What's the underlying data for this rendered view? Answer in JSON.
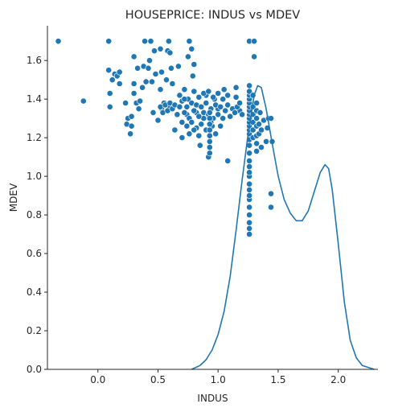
{
  "chart_data": {
    "type": "scatter",
    "title": "HOUSEPRICE: INDUS vs MDEV",
    "xlabel": "INDUS",
    "ylabel": "MDEV",
    "xlim": [
      -0.42,
      2.33
    ],
    "ylim": [
      0.0,
      1.78
    ],
    "xticks": [
      0.0,
      0.5,
      1.0,
      1.5,
      2.0
    ],
    "xtick_labels": [
      "0.0",
      "0.5",
      "1.0",
      "1.5",
      "2.0"
    ],
    "yticks": [
      0.0,
      0.2,
      0.4,
      0.6,
      0.8,
      1.0,
      1.2,
      1.4,
      1.6
    ],
    "ytick_labels": [
      "0.0",
      "0.2",
      "0.4",
      "0.6",
      "0.8",
      "1.0",
      "1.2",
      "1.4",
      "1.6"
    ],
    "grid": false,
    "point_color": "#1f77b4",
    "line_color": "#1f77b4",
    "series": [
      {
        "kind": "scatter",
        "points": [
          [
            -0.33,
            1.7
          ],
          [
            -0.12,
            1.39
          ],
          [
            0.09,
            1.7
          ],
          [
            0.09,
            1.55
          ],
          [
            0.1,
            1.43
          ],
          [
            0.1,
            1.36
          ],
          [
            0.12,
            1.5
          ],
          [
            0.14,
            1.53
          ],
          [
            0.16,
            1.52
          ],
          [
            0.18,
            1.54
          ],
          [
            0.18,
            1.48
          ],
          [
            0.23,
            1.38
          ],
          [
            0.24,
            1.27
          ],
          [
            0.25,
            1.3
          ],
          [
            0.27,
            1.22
          ],
          [
            0.28,
            1.26
          ],
          [
            0.28,
            1.31
          ],
          [
            0.3,
            1.43
          ],
          [
            0.3,
            1.48
          ],
          [
            0.3,
            1.62
          ],
          [
            0.32,
            1.38
          ],
          [
            0.33,
            1.56
          ],
          [
            0.34,
            1.35
          ],
          [
            0.35,
            1.39
          ],
          [
            0.37,
            1.46
          ],
          [
            0.38,
            1.57
          ],
          [
            0.39,
            1.7
          ],
          [
            0.4,
            1.49
          ],
          [
            0.42,
            1.56
          ],
          [
            0.43,
            1.6
          ],
          [
            0.44,
            1.7
          ],
          [
            0.45,
            1.49
          ],
          [
            0.46,
            1.33
          ],
          [
            0.47,
            1.65
          ],
          [
            0.48,
            1.53
          ],
          [
            0.5,
            1.29
          ],
          [
            0.52,
            1.66
          ],
          [
            0.52,
            1.45
          ],
          [
            0.53,
            1.54
          ],
          [
            0.53,
            1.35
          ],
          [
            0.55,
            1.38
          ],
          [
            0.57,
            1.5
          ],
          [
            0.58,
            1.65
          ],
          [
            0.59,
            1.7
          ],
          [
            0.6,
            1.36
          ],
          [
            0.6,
            1.64
          ],
          [
            0.61,
            1.56
          ],
          [
            0.62,
            1.48
          ],
          [
            0.64,
            1.24
          ],
          [
            0.67,
            1.57
          ],
          [
            0.7,
            1.2
          ],
          [
            0.72,
            1.45
          ],
          [
            0.74,
            1.32
          ],
          [
            0.75,
            1.4
          ],
          [
            0.75,
            1.62
          ],
          [
            0.76,
            1.7
          ],
          [
            0.78,
            1.66
          ],
          [
            0.79,
            1.52
          ],
          [
            0.8,
            1.58
          ],
          [
            0.82,
            1.33
          ],
          [
            0.85,
            1.16
          ],
          [
            0.88,
            1.3
          ],
          [
            0.9,
            1.42
          ],
          [
            0.92,
            1.1
          ],
          [
            0.95,
            1.26
          ],
          [
            0.97,
            1.4
          ],
          [
            1.0,
            1.35
          ],
          [
            1.05,
            1.45
          ],
          [
            1.08,
            1.08
          ],
          [
            1.15,
            1.46
          ],
          [
            1.15,
            1.41
          ],
          [
            1.18,
            1.34
          ],
          [
            1.2,
            1.32
          ],
          [
            0.52,
            1.36
          ],
          [
            0.54,
            1.33
          ],
          [
            0.56,
            1.37
          ],
          [
            0.58,
            1.34
          ],
          [
            0.6,
            1.38
          ],
          [
            0.62,
            1.35
          ],
          [
            0.64,
            1.37
          ],
          [
            0.66,
            1.32
          ],
          [
            0.68,
            1.36
          ],
          [
            0.7,
            1.39
          ],
          [
            0.72,
            1.33
          ],
          [
            0.74,
            1.36
          ],
          [
            0.76,
            1.3
          ],
          [
            0.78,
            1.38
          ],
          [
            0.8,
            1.34
          ],
          [
            0.82,
            1.37
          ],
          [
            0.84,
            1.31
          ],
          [
            0.86,
            1.36
          ],
          [
            0.88,
            1.33
          ],
          [
            0.9,
            1.38
          ],
          [
            0.92,
            1.32
          ],
          [
            0.94,
            1.35
          ],
          [
            0.96,
            1.3
          ],
          [
            0.98,
            1.37
          ],
          [
            1.0,
            1.32
          ],
          [
            1.02,
            1.36
          ],
          [
            1.04,
            1.3
          ],
          [
            1.06,
            1.34
          ],
          [
            1.08,
            1.37
          ],
          [
            1.1,
            1.31
          ],
          [
            1.12,
            1.35
          ],
          [
            1.14,
            1.33
          ],
          [
            1.16,
            1.36
          ],
          [
            1.18,
            1.38
          ],
          [
            0.68,
            1.42
          ],
          [
            0.72,
            1.4
          ],
          [
            0.8,
            1.44
          ],
          [
            0.84,
            1.41
          ],
          [
            0.88,
            1.43
          ],
          [
            0.92,
            1.44
          ],
          [
            0.96,
            1.41
          ],
          [
            1.0,
            1.43
          ],
          [
            1.04,
            1.4
          ],
          [
            1.08,
            1.42
          ],
          [
            0.7,
            1.28
          ],
          [
            0.74,
            1.26
          ],
          [
            0.78,
            1.28
          ],
          [
            0.82,
            1.25
          ],
          [
            0.86,
            1.27
          ],
          [
            0.9,
            1.24
          ],
          [
            0.94,
            1.28
          ],
          [
            0.98,
            1.22
          ],
          [
            1.02,
            1.26
          ],
          [
            0.76,
            1.22
          ],
          [
            0.8,
            1.24
          ],
          [
            0.84,
            1.21
          ],
          [
            0.93,
            1.12
          ],
          [
            0.93,
            1.15
          ],
          [
            0.93,
            1.18
          ],
          [
            0.93,
            1.21
          ],
          [
            0.93,
            1.24
          ],
          [
            0.93,
            1.27
          ],
          [
            0.93,
            1.3
          ],
          [
            0.93,
            1.33
          ],
          [
            1.26,
            0.7
          ],
          [
            1.26,
            0.73
          ],
          [
            1.26,
            0.76
          ],
          [
            1.26,
            0.8
          ],
          [
            1.26,
            0.84
          ],
          [
            1.26,
            0.88
          ],
          [
            1.26,
            0.9
          ],
          [
            1.26,
            0.93
          ],
          [
            1.26,
            0.96
          ],
          [
            1.26,
            1.0
          ],
          [
            1.26,
            1.02
          ],
          [
            1.26,
            1.05
          ],
          [
            1.26,
            1.08
          ],
          [
            1.26,
            1.12
          ],
          [
            1.26,
            1.16
          ],
          [
            1.26,
            1.19
          ],
          [
            1.26,
            1.22
          ],
          [
            1.26,
            1.24
          ],
          [
            1.26,
            1.26
          ],
          [
            1.26,
            1.28
          ],
          [
            1.26,
            1.3
          ],
          [
            1.26,
            1.32
          ],
          [
            1.26,
            1.34
          ],
          [
            1.26,
            1.36
          ],
          [
            1.26,
            1.38
          ],
          [
            1.26,
            1.4
          ],
          [
            1.26,
            1.42
          ],
          [
            1.26,
            1.44
          ],
          [
            1.26,
            1.47
          ],
          [
            1.26,
            1.7
          ],
          [
            1.29,
            1.2
          ],
          [
            1.29,
            1.24
          ],
          [
            1.29,
            1.28
          ],
          [
            1.29,
            1.32
          ],
          [
            1.29,
            1.36
          ],
          [
            1.29,
            1.42
          ],
          [
            1.3,
            1.62
          ],
          [
            1.3,
            1.7
          ],
          [
            1.32,
            1.13
          ],
          [
            1.32,
            1.17
          ],
          [
            1.32,
            1.21
          ],
          [
            1.32,
            1.26
          ],
          [
            1.32,
            1.3
          ],
          [
            1.32,
            1.34
          ],
          [
            1.32,
            1.38
          ],
          [
            1.34,
            1.22
          ],
          [
            1.34,
            1.27
          ],
          [
            1.35,
            1.33
          ],
          [
            1.36,
            1.15
          ],
          [
            1.36,
            1.24
          ],
          [
            1.38,
            1.29
          ],
          [
            1.4,
            1.18
          ],
          [
            1.41,
            1.25
          ],
          [
            1.42,
            1.3
          ],
          [
            1.44,
            1.3
          ],
          [
            1.45,
            1.18
          ],
          [
            1.44,
            0.91
          ],
          [
            1.44,
            0.84
          ]
        ]
      },
      {
        "kind": "line",
        "points": [
          [
            0.78,
            0.0
          ],
          [
            0.85,
            0.02
          ],
          [
            0.9,
            0.05
          ],
          [
            0.95,
            0.1
          ],
          [
            1.0,
            0.18
          ],
          [
            1.05,
            0.3
          ],
          [
            1.1,
            0.48
          ],
          [
            1.15,
            0.72
          ],
          [
            1.2,
            0.98
          ],
          [
            1.25,
            1.22
          ],
          [
            1.3,
            1.42
          ],
          [
            1.33,
            1.47
          ],
          [
            1.36,
            1.46
          ],
          [
            1.4,
            1.35
          ],
          [
            1.45,
            1.17
          ],
          [
            1.5,
            1.0
          ],
          [
            1.55,
            0.88
          ],
          [
            1.6,
            0.81
          ],
          [
            1.65,
            0.77
          ],
          [
            1.7,
            0.77
          ],
          [
            1.75,
            0.82
          ],
          [
            1.8,
            0.92
          ],
          [
            1.85,
            1.02
          ],
          [
            1.89,
            1.06
          ],
          [
            1.92,
            1.04
          ],
          [
            1.95,
            0.93
          ],
          [
            2.0,
            0.65
          ],
          [
            2.05,
            0.35
          ],
          [
            2.1,
            0.15
          ],
          [
            2.15,
            0.06
          ],
          [
            2.2,
            0.02
          ],
          [
            2.25,
            0.01
          ],
          [
            2.3,
            0.0
          ]
        ]
      }
    ]
  }
}
